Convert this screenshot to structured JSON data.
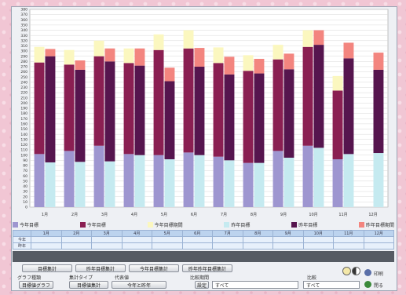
{
  "chart_data": {
    "type": "bar",
    "stacked": true,
    "grid": true,
    "legend_position": "bottom",
    "categories": [
      "1月",
      "2月",
      "3月",
      "4月",
      "5月",
      "6月",
      "7月",
      "8月",
      "9月",
      "10月",
      "11月",
      "12月"
    ],
    "ylim": [
      0,
      380
    ],
    "y_ticks": [
      0,
      10,
      20,
      30,
      40,
      50,
      60,
      70,
      80,
      90,
      100,
      110,
      120,
      130,
      140,
      150,
      160,
      170,
      180,
      190,
      200,
      210,
      220,
      230,
      240,
      250,
      260,
      270,
      280,
      290,
      300,
      310,
      320,
      330,
      340,
      350,
      360,
      370,
      380
    ],
    "series": [
      {
        "name": "今年目標",
        "stack": "target",
        "color": "#9e96d0",
        "values": [
          102,
          108,
          118,
          102,
          100,
          105,
          97,
          85,
          108,
          118,
          92,
          0
        ]
      },
      {
        "name": "今年目標",
        "stack": "target",
        "color": "#8a1f52",
        "values": [
          176,
          166,
          172,
          175,
          202,
          200,
          180,
          177,
          176,
          190,
          132,
          0
        ]
      },
      {
        "name": "今年目標期間",
        "stack": "target",
        "color": "#fbf7bf",
        "values": [
          30,
          28,
          30,
          28,
          30,
          35,
          30,
          30,
          28,
          32,
          28,
          0
        ]
      },
      {
        "name": "昨年目標",
        "stack": "actual",
        "color": "#c5eaf0",
        "values": [
          86,
          87,
          88,
          100,
          92,
          100,
          90,
          85,
          95,
          114,
          102,
          104
        ]
      },
      {
        "name": "昨年目標",
        "stack": "actual",
        "color": "#56154e",
        "values": [
          204,
          177,
          192,
          172,
          150,
          170,
          165,
          172,
          170,
          198,
          184,
          160
        ]
      },
      {
        "name": "昨年目標期間",
        "stack": "actual",
        "color": "#f3857f",
        "values": [
          14,
          18,
          25,
          33,
          26,
          36,
          34,
          28,
          30,
          28,
          30,
          33
        ]
      }
    ]
  },
  "legend": [
    {
      "label": "今年目標",
      "color": "#9e96d0"
    },
    {
      "label": "今年目標",
      "color": "#8a1f52"
    },
    {
      "label": "今年目標期間",
      "color": "#fbf7bf"
    },
    {
      "label": "昨年目標",
      "color": "#c5eaf0"
    },
    {
      "label": "昨年目標",
      "color": "#56154e"
    },
    {
      "label": "昨年目標期間",
      "color": "#f3857f"
    }
  ],
  "table": {
    "row_labels": [
      "今年",
      "昨年"
    ]
  },
  "controls": {
    "buttons_row1": [
      "目標集計",
      "昨年目標集計",
      "今年目標集計",
      "昨年昨年目標集計"
    ],
    "labels_row2": [
      "グラフ種類",
      "集計タイプ",
      "代表値",
      "比較期間",
      "比較"
    ],
    "row3": {
      "btn1": "目標値グラフ",
      "btn2": "目標値集計",
      "btn3": "今年と昨年",
      "btn4": "設定",
      "select_value": "すべて",
      "select2_value": "すべて"
    },
    "print_label": "印刷",
    "close_label": "閉る"
  }
}
